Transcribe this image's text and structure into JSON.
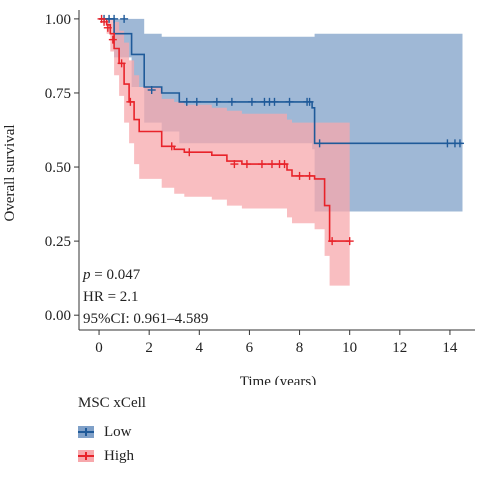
{
  "chart_data": {
    "type": "line",
    "subtype": "kaplan-meier",
    "xlabel": "Time (years)",
    "ylabel": "Overall survival",
    "xlim": [
      -0.8,
      15
    ],
    "ylim": [
      -0.05,
      1.03
    ],
    "xticks": [
      0,
      2,
      4,
      6,
      8,
      10,
      12,
      14
    ],
    "yticks": [
      0.0,
      0.25,
      0.5,
      0.75,
      1.0
    ],
    "ytick_labels": [
      "0.00",
      "0.25",
      "0.50",
      "0.75",
      "1.00"
    ],
    "grid": false,
    "legend": {
      "title": "MSC xCell",
      "placement": "bottom-left"
    },
    "annotations": {
      "p": "p",
      "p_value": " = 0.047",
      "hr": "HR = 2.1",
      "ci": "95%CI: 0.961–4.589"
    },
    "series": [
      {
        "name": "Low",
        "color": "#1f5a99",
        "band_color": "#7fa0c8",
        "steps": [
          [
            0,
            1.0
          ],
          [
            0.6,
            0.95
          ],
          [
            1.3,
            0.88
          ],
          [
            1.8,
            0.77
          ],
          [
            2.5,
            0.75
          ],
          [
            3.2,
            0.72
          ],
          [
            8.5,
            0.7
          ],
          [
            8.6,
            0.58
          ],
          [
            14.5,
            0.58
          ]
        ],
        "upper": [
          [
            0,
            1.0
          ],
          [
            0.6,
            1.0
          ],
          [
            1.3,
            1.0
          ],
          [
            1.8,
            0.95
          ],
          [
            2.5,
            0.94
          ],
          [
            8.5,
            0.94
          ],
          [
            8.6,
            0.95
          ],
          [
            14.5,
            0.95
          ]
        ],
        "lower": [
          [
            0,
            1.0
          ],
          [
            0.6,
            0.87
          ],
          [
            1.3,
            0.77
          ],
          [
            1.8,
            0.65
          ],
          [
            2.5,
            0.62
          ],
          [
            3.2,
            0.58
          ],
          [
            8.5,
            0.56
          ],
          [
            8.6,
            0.35
          ],
          [
            14.5,
            0.35
          ]
        ],
        "censors": [
          [
            0.2,
            1.0
          ],
          [
            0.4,
            1.0
          ],
          [
            0.6,
            1.0
          ],
          [
            1.0,
            1.0
          ],
          [
            2.1,
            0.76
          ],
          [
            3.5,
            0.72
          ],
          [
            3.9,
            0.72
          ],
          [
            4.7,
            0.72
          ],
          [
            5.3,
            0.72
          ],
          [
            6.1,
            0.72
          ],
          [
            6.6,
            0.72
          ],
          [
            6.8,
            0.72
          ],
          [
            7.0,
            0.72
          ],
          [
            7.6,
            0.72
          ],
          [
            8.3,
            0.72
          ],
          [
            8.4,
            0.72
          ],
          [
            8.8,
            0.58
          ],
          [
            13.9,
            0.58
          ],
          [
            14.2,
            0.58
          ],
          [
            14.4,
            0.58
          ]
        ]
      },
      {
        "name": "High",
        "color": "#e8232a",
        "band_color": "#f7a8ac",
        "steps": [
          [
            0,
            1.0
          ],
          [
            0.3,
            0.98
          ],
          [
            0.45,
            0.95
          ],
          [
            0.6,
            0.9
          ],
          [
            0.8,
            0.85
          ],
          [
            1.0,
            0.78
          ],
          [
            1.2,
            0.72
          ],
          [
            1.4,
            0.66
          ],
          [
            1.6,
            0.62
          ],
          [
            2.5,
            0.57
          ],
          [
            3.0,
            0.56
          ],
          [
            3.4,
            0.55
          ],
          [
            4.5,
            0.54
          ],
          [
            5.1,
            0.52
          ],
          [
            5.7,
            0.51
          ],
          [
            7.5,
            0.49
          ],
          [
            7.7,
            0.47
          ],
          [
            8.6,
            0.46
          ],
          [
            9.0,
            0.37
          ],
          [
            9.2,
            0.25
          ],
          [
            10.0,
            0.25
          ]
        ],
        "upper": [
          [
            0,
            1.0
          ],
          [
            0.3,
            1.0
          ],
          [
            0.45,
            1.0
          ],
          [
            0.6,
            0.99
          ],
          [
            0.8,
            0.96
          ],
          [
            1.0,
            0.92
          ],
          [
            1.2,
            0.86
          ],
          [
            1.4,
            0.81
          ],
          [
            1.6,
            0.77
          ],
          [
            2.5,
            0.73
          ],
          [
            3.0,
            0.72
          ],
          [
            3.4,
            0.71
          ],
          [
            4.5,
            0.7
          ],
          [
            5.1,
            0.69
          ],
          [
            5.7,
            0.68
          ],
          [
            7.5,
            0.66
          ],
          [
            7.7,
            0.65
          ],
          [
            8.6,
            0.65
          ],
          [
            9.0,
            0.65
          ],
          [
            9.2,
            0.65
          ],
          [
            10.0,
            0.65
          ]
        ],
        "lower": [
          [
            0,
            1.0
          ],
          [
            0.3,
            0.95
          ],
          [
            0.45,
            0.89
          ],
          [
            0.6,
            0.81
          ],
          [
            0.8,
            0.74
          ],
          [
            1.0,
            0.65
          ],
          [
            1.2,
            0.58
          ],
          [
            1.4,
            0.51
          ],
          [
            1.6,
            0.46
          ],
          [
            2.5,
            0.43
          ],
          [
            3.0,
            0.41
          ],
          [
            3.4,
            0.4
          ],
          [
            4.5,
            0.39
          ],
          [
            5.1,
            0.37
          ],
          [
            5.7,
            0.36
          ],
          [
            7.5,
            0.33
          ],
          [
            7.7,
            0.31
          ],
          [
            8.6,
            0.29
          ],
          [
            9.0,
            0.2
          ],
          [
            9.2,
            0.1
          ],
          [
            10.0,
            0.1
          ]
        ],
        "censors": [
          [
            0.1,
            1.0
          ],
          [
            0.2,
            0.99
          ],
          [
            0.35,
            0.97
          ],
          [
            0.55,
            0.93
          ],
          [
            0.9,
            0.85
          ],
          [
            1.25,
            0.72
          ],
          [
            2.9,
            0.57
          ],
          [
            3.6,
            0.55
          ],
          [
            5.4,
            0.51
          ],
          [
            5.9,
            0.51
          ],
          [
            6.5,
            0.51
          ],
          [
            6.9,
            0.51
          ],
          [
            7.2,
            0.51
          ],
          [
            7.4,
            0.51
          ],
          [
            8.0,
            0.47
          ],
          [
            8.4,
            0.47
          ],
          [
            9.3,
            0.25
          ],
          [
            10.0,
            0.25
          ]
        ]
      }
    ]
  }
}
